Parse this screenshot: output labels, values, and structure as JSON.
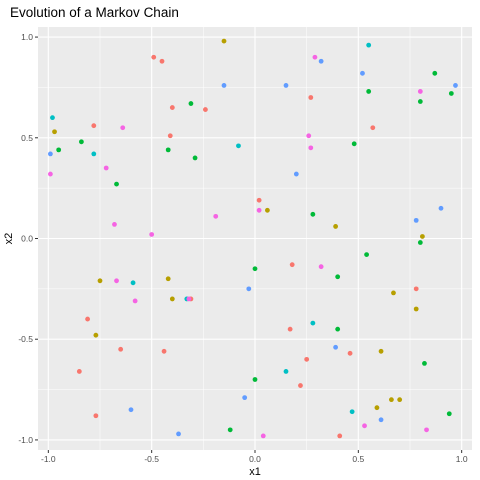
{
  "chart_data": {
    "type": "scatter",
    "title": "Evolution of a Markov Chain",
    "xlabel": "x1",
    "ylabel": "x2",
    "xlim": [
      -1.05,
      1.05
    ],
    "ylim": [
      -1.05,
      1.05
    ],
    "x_ticks": [
      {
        "value": -1.0,
        "label": "-1.0"
      },
      {
        "value": -0.5,
        "label": "-0.5"
      },
      {
        "value": 0.0,
        "label": "0.0"
      },
      {
        "value": 0.5,
        "label": "0.5"
      },
      {
        "value": 1.0,
        "label": "1.0"
      }
    ],
    "y_ticks": [
      {
        "value": -1.0,
        "label": "-1.0"
      },
      {
        "value": -0.5,
        "label": "-0.5"
      },
      {
        "value": 0.0,
        "label": "0.0"
      },
      {
        "value": 0.5,
        "label": "0.5"
      },
      {
        "value": 1.0,
        "label": "1.0"
      }
    ],
    "grid": true,
    "legend": "none",
    "panel_background": "#ebebeb",
    "grid_color": "#ffffff",
    "colors": {
      "red": "#f8766d",
      "olive": "#b79f00",
      "green": "#00ba38",
      "teal": "#00bfc4",
      "blue": "#619cff",
      "magenta": "#f564e3"
    },
    "points": [
      {
        "x": -0.49,
        "y": 0.9,
        "c": "red"
      },
      {
        "x": -0.45,
        "y": 0.88,
        "c": "red"
      },
      {
        "x": -0.4,
        "y": 0.65,
        "c": "red"
      },
      {
        "x": -0.41,
        "y": 0.51,
        "c": "red"
      },
      {
        "x": -0.24,
        "y": 0.64,
        "c": "red"
      },
      {
        "x": -0.78,
        "y": 0.56,
        "c": "red"
      },
      {
        "x": 0.27,
        "y": 0.7,
        "c": "red"
      },
      {
        "x": 0.57,
        "y": 0.55,
        "c": "red"
      },
      {
        "x": 0.02,
        "y": 0.19,
        "c": "red"
      },
      {
        "x": 0.18,
        "y": -0.13,
        "c": "red"
      },
      {
        "x": 0.17,
        "y": -0.45,
        "c": "red"
      },
      {
        "x": 0.25,
        "y": -0.6,
        "c": "red"
      },
      {
        "x": 0.22,
        "y": -0.73,
        "c": "red"
      },
      {
        "x": 0.78,
        "y": -0.25,
        "c": "red"
      },
      {
        "x": -0.81,
        "y": -0.4,
        "c": "red"
      },
      {
        "x": -0.65,
        "y": -0.55,
        "c": "red"
      },
      {
        "x": -0.85,
        "y": -0.66,
        "c": "red"
      },
      {
        "x": -0.77,
        "y": -0.88,
        "c": "red"
      },
      {
        "x": 0.41,
        "y": -0.98,
        "c": "red"
      },
      {
        "x": 0.46,
        "y": -0.57,
        "c": "red"
      },
      {
        "x": -0.44,
        "y": -0.56,
        "c": "red"
      },
      {
        "x": -0.31,
        "y": -0.3,
        "c": "red"
      },
      {
        "x": -0.4,
        "y": -0.3,
        "c": "olive"
      },
      {
        "x": -0.15,
        "y": 0.98,
        "c": "olive"
      },
      {
        "x": -0.97,
        "y": 0.53,
        "c": "olive"
      },
      {
        "x": 0.06,
        "y": 0.14,
        "c": "olive"
      },
      {
        "x": 0.39,
        "y": 0.06,
        "c": "olive"
      },
      {
        "x": 0.81,
        "y": 0.01,
        "c": "olive"
      },
      {
        "x": -0.75,
        "y": -0.21,
        "c": "olive"
      },
      {
        "x": -0.42,
        "y": -0.2,
        "c": "olive"
      },
      {
        "x": 0.67,
        "y": -0.27,
        "c": "olive"
      },
      {
        "x": 0.78,
        "y": -0.35,
        "c": "olive"
      },
      {
        "x": 0.61,
        "y": -0.56,
        "c": "olive"
      },
      {
        "x": 0.66,
        "y": -0.8,
        "c": "olive"
      },
      {
        "x": 0.7,
        "y": -0.8,
        "c": "olive"
      },
      {
        "x": 0.59,
        "y": -0.84,
        "c": "olive"
      },
      {
        "x": -0.77,
        "y": -0.48,
        "c": "olive"
      },
      {
        "x": -0.31,
        "y": 0.67,
        "c": "green"
      },
      {
        "x": -0.29,
        "y": 0.4,
        "c": "green"
      },
      {
        "x": -0.42,
        "y": 0.44,
        "c": "green"
      },
      {
        "x": -0.84,
        "y": 0.48,
        "c": "green"
      },
      {
        "x": -0.95,
        "y": 0.44,
        "c": "green"
      },
      {
        "x": -0.67,
        "y": 0.27,
        "c": "green"
      },
      {
        "x": 0.55,
        "y": 0.73,
        "c": "green"
      },
      {
        "x": 0.48,
        "y": 0.47,
        "c": "green"
      },
      {
        "x": 0.8,
        "y": 0.68,
        "c": "green"
      },
      {
        "x": 0.87,
        "y": 0.82,
        "c": "green"
      },
      {
        "x": 0.95,
        "y": 0.72,
        "c": "green"
      },
      {
        "x": 0.28,
        "y": 0.12,
        "c": "green"
      },
      {
        "x": 0.0,
        "y": -0.15,
        "c": "green"
      },
      {
        "x": 0.4,
        "y": -0.19,
        "c": "green"
      },
      {
        "x": 0.54,
        "y": -0.08,
        "c": "green"
      },
      {
        "x": 0.8,
        "y": -0.02,
        "c": "green"
      },
      {
        "x": 0.4,
        "y": -0.45,
        "c": "green"
      },
      {
        "x": 0.82,
        "y": -0.62,
        "c": "green"
      },
      {
        "x": 0.0,
        "y": -0.7,
        "c": "green"
      },
      {
        "x": -0.12,
        "y": -0.95,
        "c": "green"
      },
      {
        "x": 0.94,
        "y": -0.87,
        "c": "green"
      },
      {
        "x": -0.78,
        "y": 0.42,
        "c": "teal"
      },
      {
        "x": -0.98,
        "y": 0.6,
        "c": "teal"
      },
      {
        "x": -0.08,
        "y": 0.46,
        "c": "teal"
      },
      {
        "x": 0.55,
        "y": 0.96,
        "c": "teal"
      },
      {
        "x": -0.59,
        "y": -0.22,
        "c": "teal"
      },
      {
        "x": -0.33,
        "y": -0.3,
        "c": "teal"
      },
      {
        "x": 0.28,
        "y": -0.42,
        "c": "teal"
      },
      {
        "x": 0.15,
        "y": -0.66,
        "c": "teal"
      },
      {
        "x": 0.47,
        "y": -0.86,
        "c": "teal"
      },
      {
        "x": -0.15,
        "y": 0.76,
        "c": "blue"
      },
      {
        "x": 0.15,
        "y": 0.76,
        "c": "blue"
      },
      {
        "x": 0.32,
        "y": 0.88,
        "c": "blue"
      },
      {
        "x": 0.52,
        "y": 0.82,
        "c": "blue"
      },
      {
        "x": 0.97,
        "y": 0.76,
        "c": "blue"
      },
      {
        "x": -0.99,
        "y": 0.42,
        "c": "blue"
      },
      {
        "x": 0.2,
        "y": 0.32,
        "c": "blue"
      },
      {
        "x": 0.78,
        "y": 0.09,
        "c": "blue"
      },
      {
        "x": 0.9,
        "y": 0.15,
        "c": "blue"
      },
      {
        "x": -0.03,
        "y": -0.25,
        "c": "blue"
      },
      {
        "x": 0.39,
        "y": -0.54,
        "c": "blue"
      },
      {
        "x": -0.05,
        "y": -0.79,
        "c": "blue"
      },
      {
        "x": -0.6,
        "y": -0.85,
        "c": "blue"
      },
      {
        "x": -0.37,
        "y": -0.97,
        "c": "blue"
      },
      {
        "x": 0.61,
        "y": -0.9,
        "c": "blue"
      },
      {
        "x": 0.29,
        "y": 0.9,
        "c": "magenta"
      },
      {
        "x": 0.8,
        "y": 0.73,
        "c": "magenta"
      },
      {
        "x": -0.64,
        "y": 0.55,
        "c": "magenta"
      },
      {
        "x": 0.26,
        "y": 0.51,
        "c": "magenta"
      },
      {
        "x": 0.27,
        "y": 0.45,
        "c": "magenta"
      },
      {
        "x": -0.72,
        "y": 0.35,
        "c": "magenta"
      },
      {
        "x": -0.99,
        "y": 0.32,
        "c": "magenta"
      },
      {
        "x": -0.19,
        "y": 0.11,
        "c": "magenta"
      },
      {
        "x": 0.02,
        "y": 0.14,
        "c": "magenta"
      },
      {
        "x": -0.68,
        "y": 0.07,
        "c": "magenta"
      },
      {
        "x": -0.5,
        "y": 0.02,
        "c": "magenta"
      },
      {
        "x": 0.32,
        "y": -0.14,
        "c": "magenta"
      },
      {
        "x": -0.67,
        "y": -0.21,
        "c": "magenta"
      },
      {
        "x": -0.58,
        "y": -0.31,
        "c": "magenta"
      },
      {
        "x": -0.32,
        "y": -0.3,
        "c": "magenta"
      },
      {
        "x": 0.04,
        "y": -0.98,
        "c": "magenta"
      },
      {
        "x": 0.53,
        "y": -0.93,
        "c": "magenta"
      },
      {
        "x": 0.83,
        "y": -0.95,
        "c": "magenta"
      }
    ]
  }
}
